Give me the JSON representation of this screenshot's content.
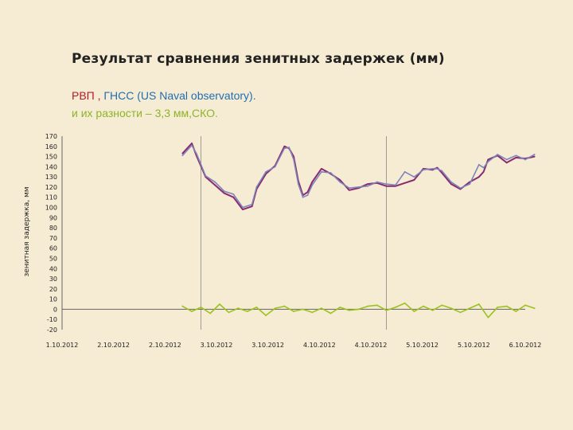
{
  "title": "Результат сравнения зенитных задержек (мм)",
  "subtitle": {
    "part_rvp": "РВП",
    "separator": " , ",
    "part_gnss": "ГНСС (US Naval observatory).",
    "line2": "и их разности – 3,3 мм,СКО."
  },
  "colors": {
    "rvp": "#b21c27",
    "gnss": "#1f6eb4",
    "diff": "#8db42a",
    "series_rvp_line": "#8a2a70",
    "series_gnss_line": "#7d85b8",
    "series_diff_line": "#9cc21e",
    "axis": "#666666",
    "grid_vertical": "#888888"
  },
  "chart_data": {
    "type": "line",
    "ylabel": "зенитная задержка, мм",
    "xlabel": "",
    "ylim": [
      -20,
      170
    ],
    "y_ticks": [
      "170",
      "160",
      "150",
      "140",
      "130",
      "120",
      "110",
      "100",
      "90",
      "80",
      "70",
      "60",
      "50",
      "40",
      "30",
      "20",
      "10",
      "0",
      "-10",
      "-20"
    ],
    "x_ticks": [
      "1.10.2012",
      "2.10.2012",
      "2.10.2012",
      "3.10.2012",
      "3.10.2012",
      "4.10.2012",
      "4.10.2012",
      "5.10.2012",
      "5.10.2012",
      "6.10.2012"
    ],
    "x_range_days": [
      0,
      5
    ],
    "grid": "vertical lines at ticks 2.10.2012 (12h) and 4.10.2012 (12h)",
    "legend": "none",
    "series": [
      {
        "x_days": [
          1.3,
          1.4,
          1.45,
          1.55,
          1.65,
          1.75,
          1.85,
          1.95,
          2.05,
          2.1,
          2.2,
          2.3,
          2.4,
          2.45,
          2.5,
          2.55,
          2.6,
          2.65,
          2.7,
          2.8,
          2.9,
          3.0,
          3.1,
          3.2,
          3.3,
          3.4,
          3.5,
          3.6,
          3.7,
          3.8,
          3.9,
          4.0,
          4.05,
          4.1,
          4.2,
          4.3,
          4.4,
          4.5,
          4.55,
          4.6,
          4.7,
          4.8,
          4.9,
          5.0,
          5.1
        ],
        "values": [
          153,
          163,
          151,
          130,
          122,
          114,
          110,
          98,
          101,
          118,
          133,
          141,
          160,
          158,
          150,
          126,
          112,
          115,
          125,
          138,
          133,
          127,
          117,
          119,
          123,
          124,
          121,
          121,
          124,
          127,
          138,
          137,
          139,
          134,
          123,
          118,
          125,
          130,
          135,
          147,
          151,
          144,
          149,
          148,
          150
        ]
      },
      {
        "x_days": [
          1.3,
          1.4,
          1.45,
          1.55,
          1.65,
          1.75,
          1.85,
          1.95,
          2.05,
          2.1,
          2.2,
          2.3,
          2.4,
          2.45,
          2.5,
          2.55,
          2.6,
          2.65,
          2.7,
          2.8,
          2.9,
          3.0,
          3.1,
          3.2,
          3.3,
          3.4,
          3.5,
          3.6,
          3.7,
          3.8,
          3.9,
          4.0,
          4.05,
          4.1,
          4.2,
          4.3,
          4.4,
          4.5,
          4.55,
          4.6,
          4.7,
          4.8,
          4.9,
          5.0,
          5.1
        ],
        "values": [
          151,
          161,
          153,
          131,
          125,
          116,
          113,
          100,
          103,
          120,
          135,
          140,
          158,
          159,
          147,
          123,
          110,
          112,
          122,
          135,
          134,
          125,
          119,
          120,
          121,
          125,
          123,
          122,
          135,
          130,
          137,
          138,
          138,
          136,
          125,
          119,
          123,
          142,
          139,
          145,
          152,
          147,
          151,
          147,
          152
        ]
      },
      {
        "x_days": [
          1.3,
          1.4,
          1.5,
          1.6,
          1.7,
          1.8,
          1.9,
          2.0,
          2.1,
          2.2,
          2.3,
          2.4,
          2.5,
          2.6,
          2.7,
          2.8,
          2.9,
          3.0,
          3.1,
          3.2,
          3.3,
          3.4,
          3.5,
          3.6,
          3.7,
          3.8,
          3.9,
          4.0,
          4.1,
          4.2,
          4.3,
          4.4,
          4.5,
          4.6,
          4.7,
          4.8,
          4.9,
          5.0,
          5.1
        ],
        "values": [
          3,
          -2,
          2,
          -4,
          5,
          -3,
          1,
          -2,
          2,
          -6,
          1,
          3,
          -2,
          0,
          -3,
          1,
          -4,
          2,
          -1,
          0,
          3,
          4,
          -1,
          2,
          6,
          -2,
          3,
          -1,
          4,
          1,
          -3,
          1,
          5,
          -8,
          2,
          3,
          -2,
          4,
          1
        ]
      }
    ]
  }
}
